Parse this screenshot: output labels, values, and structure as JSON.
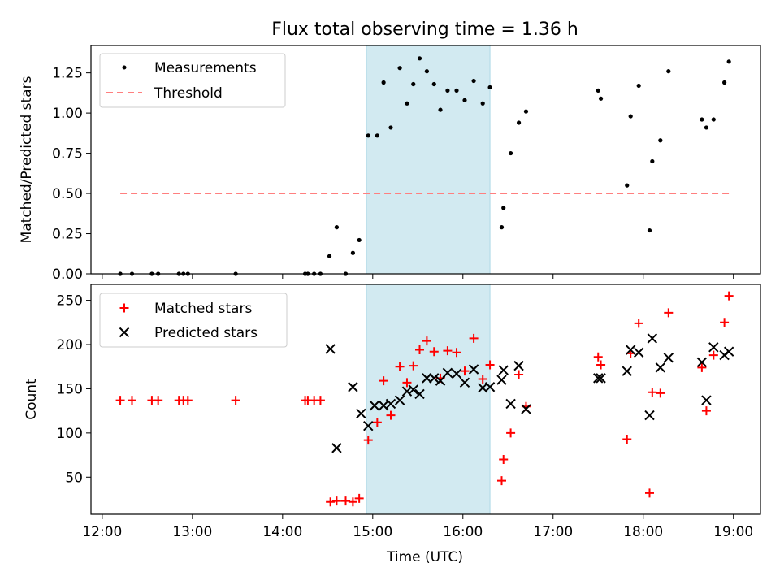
{
  "figure": {
    "title": "Flux total observing time = 1.36 h",
    "xlabel": "Time (UTC)",
    "x_ticks": [
      {
        "hour": 12,
        "label": "12:00"
      },
      {
        "hour": 13,
        "label": "13:00"
      },
      {
        "hour": 14,
        "label": "14:00"
      },
      {
        "hour": 15,
        "label": "15:00"
      },
      {
        "hour": 16,
        "label": "16:00"
      },
      {
        "hour": 17,
        "label": "17:00"
      },
      {
        "hour": 18,
        "label": "18:00"
      },
      {
        "hour": 19,
        "label": "19:00"
      }
    ],
    "xlim_hours": [
      11.875,
      19.3
    ],
    "shaded_span_hours": [
      14.93,
      16.3
    ],
    "colors": {
      "shade": "#add8e6",
      "threshold": "#ff7f7f",
      "matched": "#ff0000",
      "predicted": "#000000",
      "measurement": "#000000"
    }
  },
  "chart_data": [
    {
      "type": "scatter",
      "ylabel": "Matched/Predicted stars",
      "ylim": [
        0,
        1.42
      ],
      "yticks": [
        {
          "v": 0.0,
          "label": "0.00"
        },
        {
          "v": 0.25,
          "label": "0.25"
        },
        {
          "v": 0.5,
          "label": "0.50"
        },
        {
          "v": 0.75,
          "label": "0.75"
        },
        {
          "v": 1.0,
          "label": "1.00"
        },
        {
          "v": 1.25,
          "label": "1.25"
        }
      ],
      "legend": {
        "placement": "upper-left",
        "entries": [
          "Measurements",
          "Threshold"
        ]
      },
      "threshold": {
        "name": "Threshold",
        "value": 0.5,
        "x_range": [
          12.2,
          18.95
        ]
      },
      "measurements": {
        "name": "Measurements",
        "points": [
          [
            12.2,
            0
          ],
          [
            12.33,
            0
          ],
          [
            12.55,
            0
          ],
          [
            12.62,
            0
          ],
          [
            12.85,
            0
          ],
          [
            12.9,
            0
          ],
          [
            12.95,
            0
          ],
          [
            13.48,
            0
          ],
          [
            14.25,
            0
          ],
          [
            14.28,
            0
          ],
          [
            14.35,
            0
          ],
          [
            14.42,
            0
          ],
          [
            14.52,
            0.11
          ],
          [
            14.6,
            0.29
          ],
          [
            14.7,
            0
          ],
          [
            14.78,
            0.13
          ],
          [
            14.85,
            0.21
          ],
          [
            14.95,
            0.86
          ],
          [
            15.05,
            0.86
          ],
          [
            15.12,
            1.19
          ],
          [
            15.2,
            0.91
          ],
          [
            15.3,
            1.28
          ],
          [
            15.38,
            1.06
          ],
          [
            15.45,
            1.18
          ],
          [
            15.52,
            1.34
          ],
          [
            15.6,
            1.26
          ],
          [
            15.68,
            1.18
          ],
          [
            15.75,
            1.02
          ],
          [
            15.83,
            1.14
          ],
          [
            15.93,
            1.14
          ],
          [
            16.02,
            1.08
          ],
          [
            16.12,
            1.2
          ],
          [
            16.22,
            1.06
          ],
          [
            16.3,
            1.16
          ],
          [
            16.43,
            0.29
          ],
          [
            16.45,
            0.41
          ],
          [
            16.53,
            0.75
          ],
          [
            16.62,
            0.94
          ],
          [
            16.7,
            1.01
          ],
          [
            17.5,
            1.14
          ],
          [
            17.53,
            1.09
          ],
          [
            17.82,
            0.55
          ],
          [
            17.86,
            0.98
          ],
          [
            17.95,
            1.17
          ],
          [
            18.07,
            0.27
          ],
          [
            18.1,
            0.7
          ],
          [
            18.19,
            0.83
          ],
          [
            18.28,
            1.26
          ],
          [
            18.65,
            0.96
          ],
          [
            18.7,
            0.91
          ],
          [
            18.78,
            0.96
          ],
          [
            18.9,
            1.19
          ],
          [
            18.95,
            1.32
          ]
        ]
      }
    },
    {
      "type": "scatter",
      "ylabel": "Count",
      "ylim": [
        8,
        268
      ],
      "yticks": [
        {
          "v": 50,
          "label": "50"
        },
        {
          "v": 100,
          "label": "100"
        },
        {
          "v": 150,
          "label": "150"
        },
        {
          "v": 200,
          "label": "200"
        },
        {
          "v": 250,
          "label": "250"
        }
      ],
      "legend": {
        "placement": "upper-left",
        "entries": [
          "Matched stars",
          "Predicted stars"
        ]
      },
      "series": [
        {
          "name": "Matched stars",
          "marker": "+",
          "points": [
            [
              12.2,
              137
            ],
            [
              12.33,
              137
            ],
            [
              12.55,
              137
            ],
            [
              12.62,
              137
            ],
            [
              12.85,
              137
            ],
            [
              12.9,
              137
            ],
            [
              12.95,
              137
            ],
            [
              13.48,
              137
            ],
            [
              14.25,
              137
            ],
            [
              14.28,
              137
            ],
            [
              14.35,
              137
            ],
            [
              14.42,
              137
            ],
            [
              14.53,
              22
            ],
            [
              14.6,
              23
            ],
            [
              14.7,
              23
            ],
            [
              14.78,
              22
            ],
            [
              14.85,
              26
            ],
            [
              14.95,
              92
            ],
            [
              15.05,
              112
            ],
            [
              15.12,
              159
            ],
            [
              15.2,
              120
            ],
            [
              15.3,
              175
            ],
            [
              15.38,
              157
            ],
            [
              15.45,
              176
            ],
            [
              15.52,
              194
            ],
            [
              15.6,
              204
            ],
            [
              15.68,
              192
            ],
            [
              15.75,
              162
            ],
            [
              15.83,
              193
            ],
            [
              15.93,
              191
            ],
            [
              16.02,
              170
            ],
            [
              16.12,
              207
            ],
            [
              16.22,
              161
            ],
            [
              16.3,
              177
            ],
            [
              16.43,
              46
            ],
            [
              16.45,
              70
            ],
            [
              16.53,
              100
            ],
            [
              16.62,
              166
            ],
            [
              16.7,
              130
            ],
            [
              17.5,
              186
            ],
            [
              17.53,
              177
            ],
            [
              17.82,
              93
            ],
            [
              17.86,
              190
            ],
            [
              17.95,
              224
            ],
            [
              18.07,
              32
            ],
            [
              18.1,
              146
            ],
            [
              18.19,
              145
            ],
            [
              18.28,
              236
            ],
            [
              18.65,
              174
            ],
            [
              18.7,
              125
            ],
            [
              18.78,
              188
            ],
            [
              18.9,
              225
            ],
            [
              18.95,
              255
            ]
          ]
        },
        {
          "name": "Predicted stars",
          "marker": "x",
          "points": [
            [
              14.53,
              195
            ],
            [
              14.6,
              83
            ],
            [
              14.78,
              152
            ],
            [
              14.87,
              122
            ],
            [
              14.95,
              108
            ],
            [
              15.02,
              131
            ],
            [
              15.12,
              131
            ],
            [
              15.2,
              133
            ],
            [
              15.3,
              137
            ],
            [
              15.38,
              147
            ],
            [
              15.45,
              149
            ],
            [
              15.52,
              144
            ],
            [
              15.6,
              162
            ],
            [
              15.68,
              162
            ],
            [
              15.75,
              159
            ],
            [
              15.83,
              168
            ],
            [
              15.93,
              167
            ],
            [
              16.02,
              157
            ],
            [
              16.12,
              172
            ],
            [
              16.22,
              151
            ],
            [
              16.3,
              152
            ],
            [
              16.43,
              160
            ],
            [
              16.45,
              171
            ],
            [
              16.53,
              133
            ],
            [
              16.62,
              176
            ],
            [
              16.7,
              127
            ],
            [
              17.5,
              162
            ],
            [
              17.53,
              162
            ],
            [
              17.82,
              170
            ],
            [
              17.86,
              194
            ],
            [
              17.95,
              191
            ],
            [
              18.1,
              207
            ],
            [
              18.07,
              120
            ],
            [
              18.19,
              174
            ],
            [
              18.28,
              185
            ],
            [
              18.65,
              180
            ],
            [
              18.7,
              137
            ],
            [
              18.78,
              197
            ],
            [
              18.9,
              188
            ],
            [
              18.95,
              192
            ]
          ]
        }
      ]
    }
  ]
}
